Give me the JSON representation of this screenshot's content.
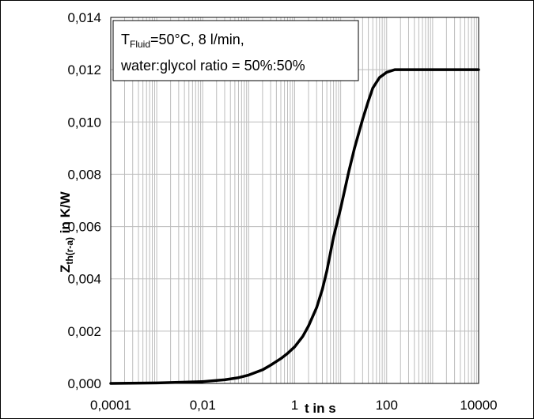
{
  "chart_data": {
    "type": "line",
    "xscale": "log",
    "xlim": [
      0.0001,
      10000
    ],
    "ylim": [
      0.0,
      0.014
    ],
    "x_ticks": [
      {
        "v": 0.0001,
        "label": "0,0001"
      },
      {
        "v": 0.01,
        "label": "0,01"
      },
      {
        "v": 1,
        "label": "1"
      },
      {
        "v": 100,
        "label": "100"
      },
      {
        "v": 10000,
        "label": "10000"
      }
    ],
    "y_ticks": [
      {
        "v": 0.0,
        "label": "0,000"
      },
      {
        "v": 0.002,
        "label": "0,002"
      },
      {
        "v": 0.004,
        "label": "0,004"
      },
      {
        "v": 0.006,
        "label": "0,006"
      },
      {
        "v": 0.008,
        "label": "0,008"
      },
      {
        "v": 0.01,
        "label": "0,010"
      },
      {
        "v": 0.012,
        "label": "0,012"
      },
      {
        "v": 0.014,
        "label": "0,014"
      }
    ],
    "xlabel": "t in s",
    "ylabel": {
      "main": "Z",
      "sub": "th(r-a)",
      "rest": " in K/W"
    },
    "grid": true,
    "annotation": {
      "line1_main": "T",
      "line1_sub": "Fluid",
      "line1_rest": "=50°C, 8 l/min,",
      "line2": "water:glycol ratio = 50%:50%"
    },
    "series": [
      {
        "x": [
          0.0001,
          0.001,
          0.003,
          0.01,
          0.03,
          0.06,
          0.1,
          0.2,
          0.3,
          0.5,
          0.7,
          1,
          1.5,
          2,
          3,
          4,
          5,
          7,
          10,
          15,
          20,
          30,
          40,
          50,
          70,
          100,
          150,
          200,
          300,
          1000,
          10000
        ],
        "y": [
          0.0,
          2e-05,
          4e-05,
          7e-05,
          0.00014,
          0.00022,
          0.00032,
          0.00052,
          0.0007,
          0.00095,
          0.00115,
          0.0014,
          0.0018,
          0.0022,
          0.0029,
          0.0036,
          0.0043,
          0.0056,
          0.0067,
          0.0081,
          0.009,
          0.0101,
          0.0108,
          0.0113,
          0.0117,
          0.0119,
          0.012,
          0.012,
          0.012,
          0.012,
          0.012
        ],
        "color": "#000000"
      }
    ]
  }
}
